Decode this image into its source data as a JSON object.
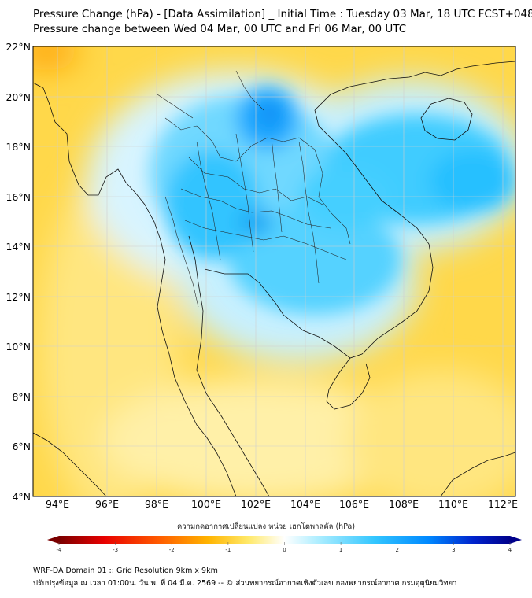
{
  "header": {
    "title_line1": "Pressure Change (hPa) - [Data Assimilation] _ Initial Time : Tuesday 03 Mar, 18 UTC FCST+048",
    "title_line2": "Pressure change between Wed 04 Mar, 00 UTC and Fri 06 Mar, 00 UTC"
  },
  "map": {
    "lat_labels": [
      "22°N",
      "20°N",
      "18°N",
      "16°N",
      "14°N",
      "12°N",
      "10°N",
      "8°N",
      "6°N",
      "4°N"
    ],
    "lon_labels": [
      "94°E",
      "96°E",
      "98°E",
      "100°E",
      "102°E",
      "104°E",
      "106°E",
      "108°E",
      "110°E",
      "112°E"
    ],
    "lat_range": [
      4,
      22
    ],
    "lon_range": [
      93,
      112.5
    ]
  },
  "colorbar": {
    "title": "ความกดอากาศเปลี่ยนแปลง หน่วย เฮกโตพาสคัล (hPa)",
    "range": [
      -4,
      4
    ],
    "ticks": [
      "-4",
      "-3",
      "-2",
      "-1",
      "0",
      "1",
      "2",
      "3",
      "4"
    ],
    "colors": {
      "neg_strong": "#7a0000",
      "neg_mid": "#ff2a00",
      "neg_weak": "#ffd000",
      "neutral": "#ffffff",
      "pos_weak": "#7fdcff",
      "pos_mid": "#00aaff",
      "pos_strong": "#00008a"
    }
  },
  "footer": {
    "line1": "WRF-DA Domain 01 :: Grid Resolution 9km x 9km",
    "line2": "ปรับปรุงข้อมูล ณ เวลา 01:00น. วัน พ. ที่ 04 มี.ค. 2569 -- © ส่วนพยากรณ์อากาศเชิงตัวเลข กองพยากรณ์อากาศ กรมอุตุนิยมวิทยา"
  }
}
